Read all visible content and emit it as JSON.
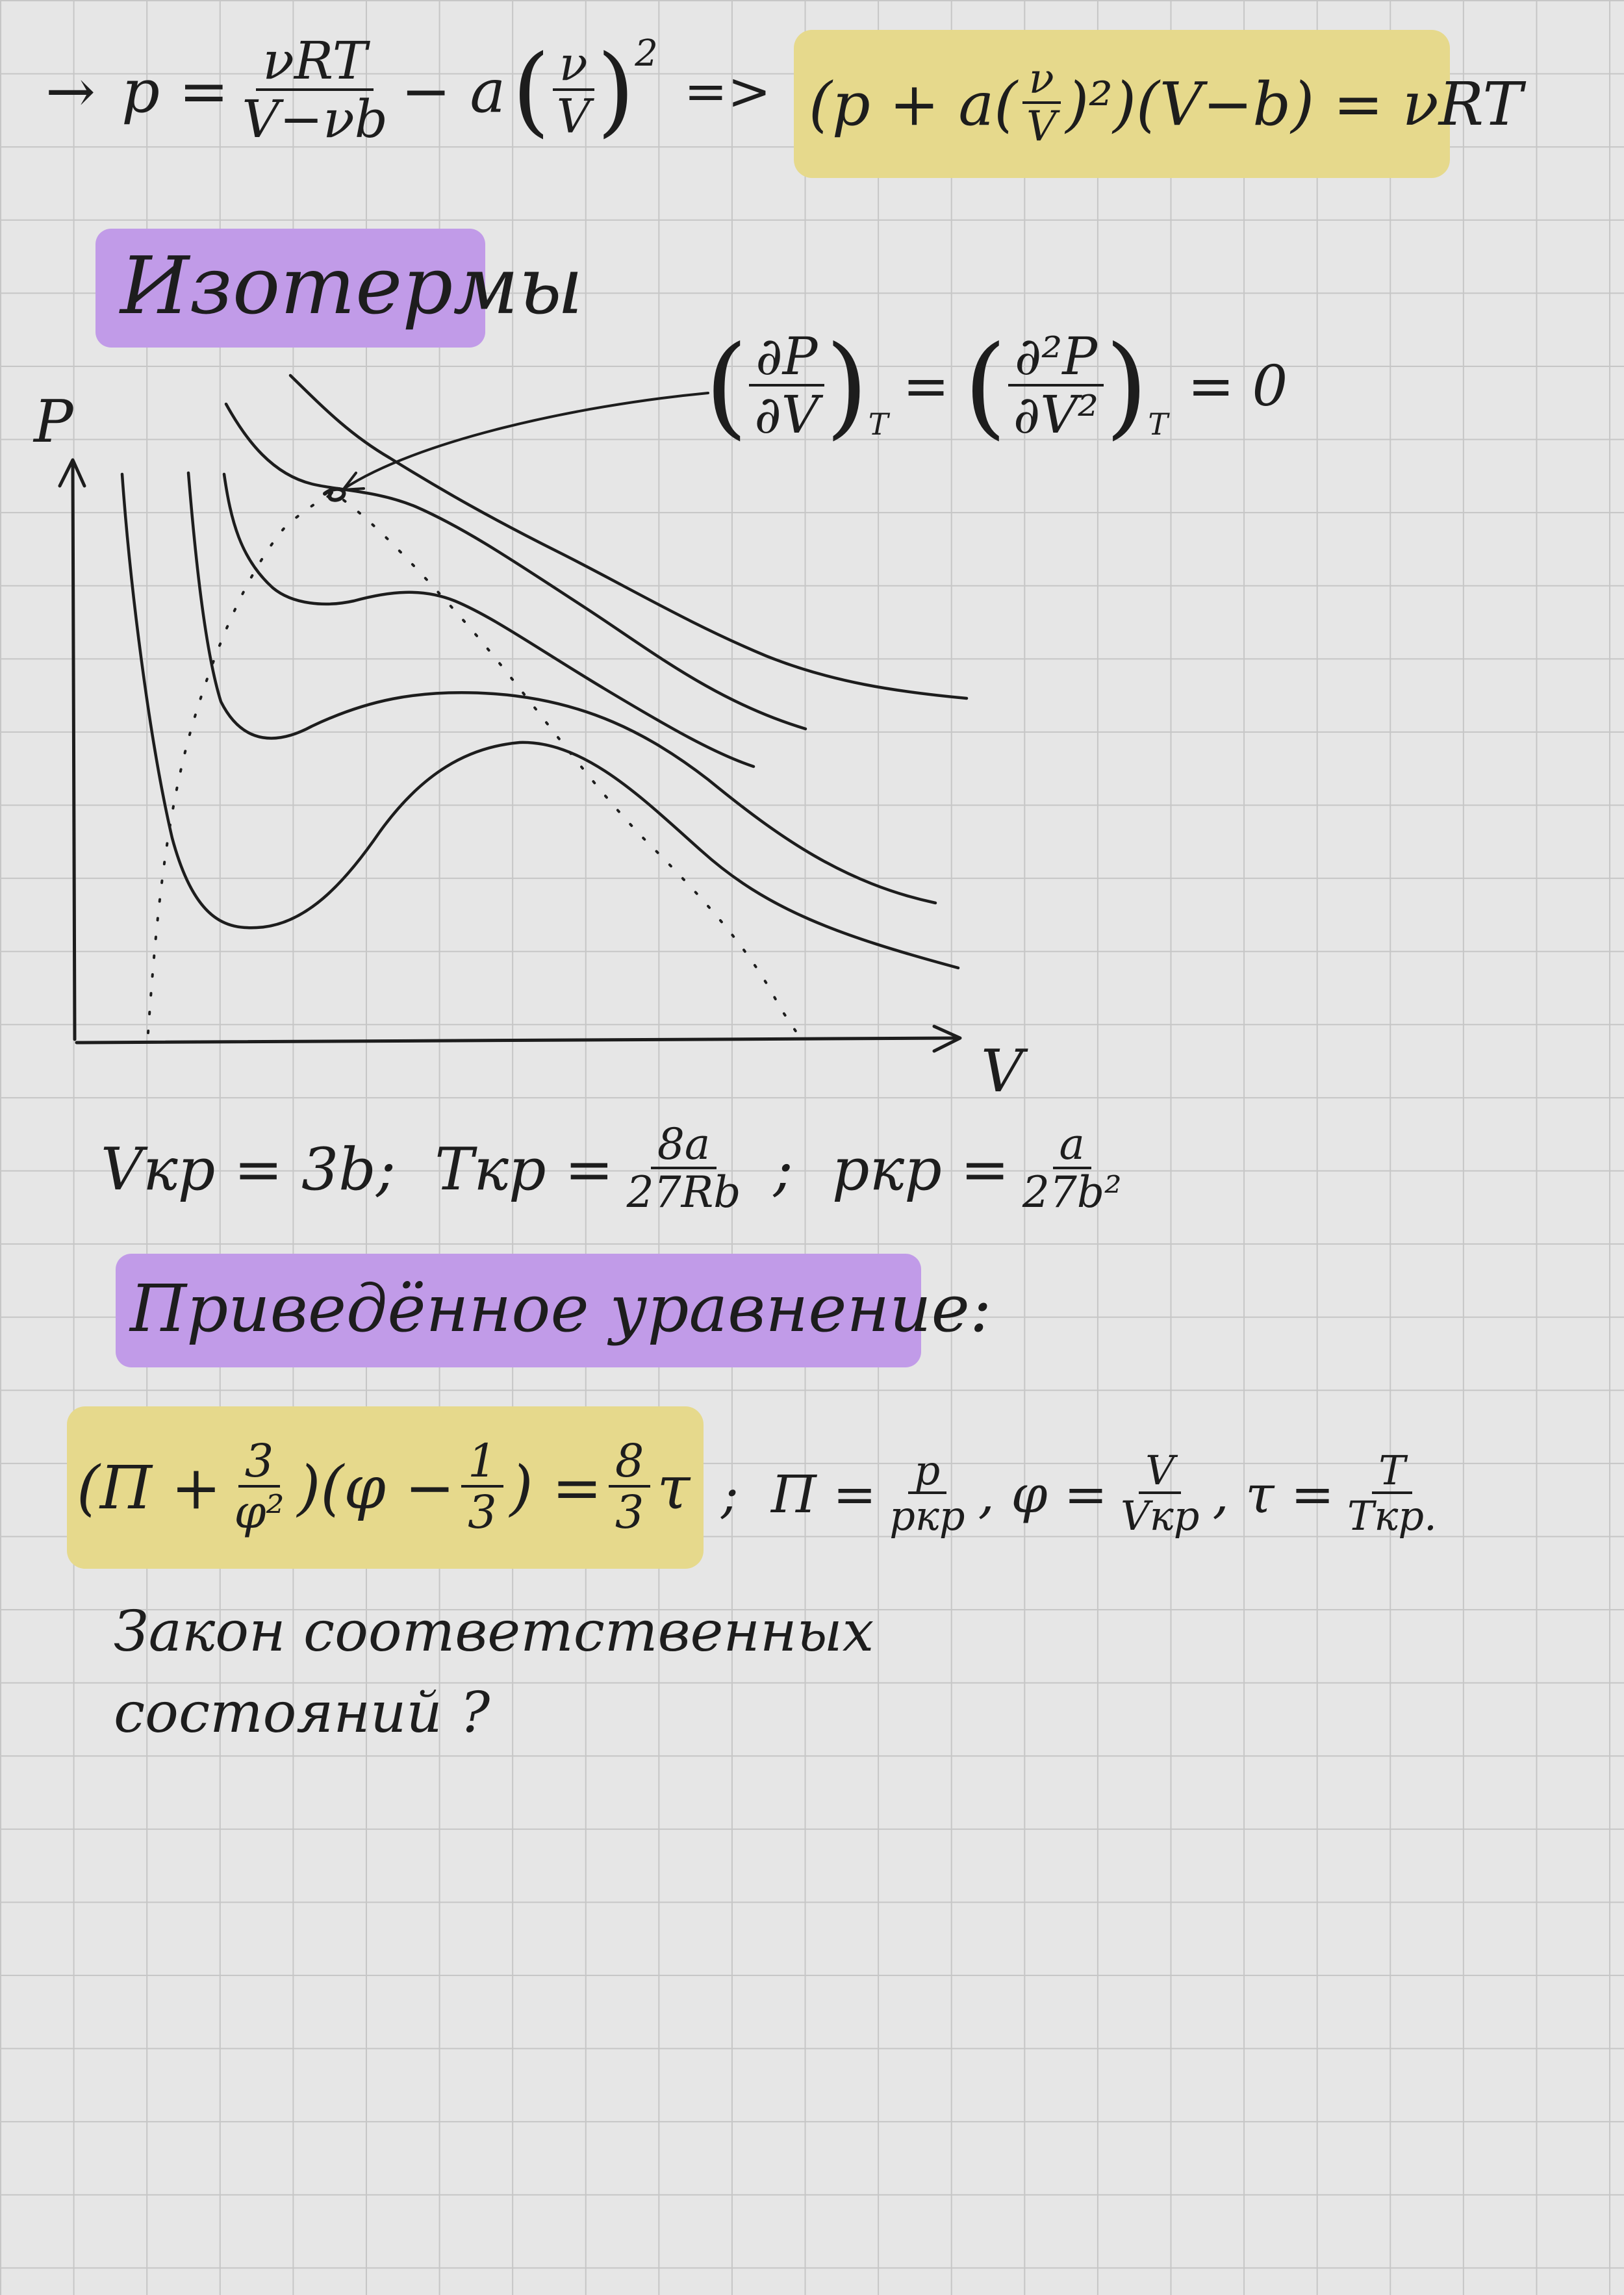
{
  "equations": {
    "pressure_arrow": "→",
    "pressure_lhs": "p =",
    "pressure_num": "νRT",
    "pressure_den": "V−νb",
    "pressure_minus": "− a",
    "pressure_paren_num": "ν",
    "pressure_paren_den": "V",
    "pressure_exp": "2",
    "implies": "=>",
    "vdw_left": "(p + a(",
    "vdw_frac_num": "ν",
    "vdw_frac_den": "V",
    "vdw_mid": ")²)",
    "vdw_right": "(V−b) = νRT"
  },
  "headings": {
    "isotherms": "Изотермы",
    "reduced_equation": "Приведённое уравнение:"
  },
  "critical_condition": {
    "lhs_num": "∂P",
    "lhs_den": "∂V",
    "lhs_sub": "T",
    "equals": "=",
    "rhs_num": "∂²P",
    "rhs_den": "∂V²",
    "rhs_sub": "T",
    "zero": "= 0"
  },
  "graph": {
    "y_label": "P",
    "x_label": "V"
  },
  "critical_values": {
    "v_text": "Vкр = 3b;",
    "t_label": "Tкр =",
    "t_num": "8a",
    "t_den": "27Rb",
    "sep": ";",
    "p_label": "pкр =",
    "p_num": "a",
    "p_den": "27b²"
  },
  "reduced": {
    "pi_open": "(Π +",
    "pi_num": "3",
    "pi_den": "φ²",
    "phi_part": ")(φ −",
    "third_num": "1",
    "third_den": "3",
    "close_eq": ") =",
    "rhs_num": "8",
    "rhs_den": "3",
    "tau": "τ",
    "def_sep": ";",
    "pi_def": "Π =",
    "pi_def_num": "p",
    "pi_def_den": "pкр",
    "phi_def": ", φ =",
    "phi_def_num": "V",
    "phi_def_den": "Vкр",
    "tau_def": ", τ =",
    "tau_def_num": "T",
    "tau_def_den": "Tкр."
  },
  "note": {
    "line1": "Закон соответственных",
    "line2": "состояний ?"
  },
  "colors": {
    "yellow_highlight": "#e6d98c",
    "purple_highlight": "#c19be8",
    "ink": "#1d1d1d"
  }
}
